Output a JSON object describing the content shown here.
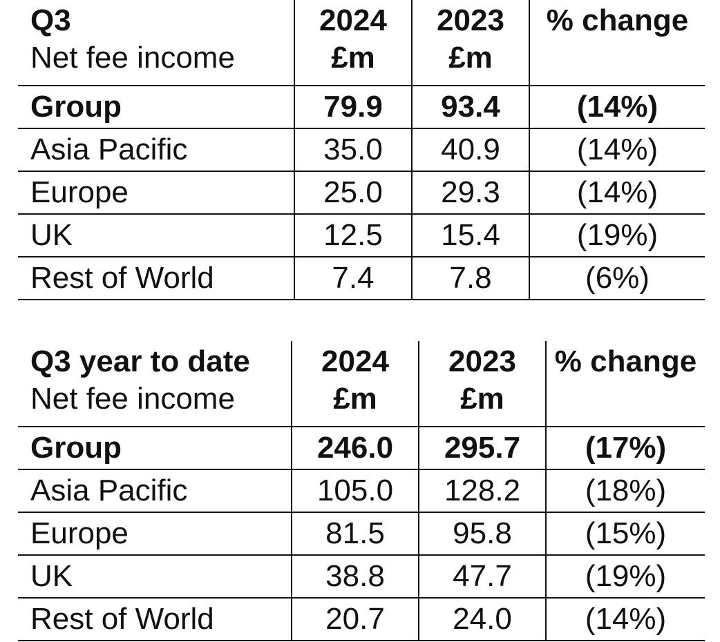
{
  "tables": [
    {
      "header": {
        "period": "Q3",
        "metric": "Net fee income",
        "col_2024": "2024",
        "col_2023": "2023",
        "unit": "£m",
        "change": "% change"
      },
      "rows": [
        {
          "label": "Group",
          "v2024": "79.9",
          "v2023": "93.4",
          "change": "(14%)"
        },
        {
          "label": "Asia Pacific",
          "v2024": "35.0",
          "v2023": "40.9",
          "change": "(14%)"
        },
        {
          "label": "Europe",
          "v2024": "25.0",
          "v2023": "29.3",
          "change": "(14%)"
        },
        {
          "label": "UK",
          "v2024": "12.5",
          "v2023": "15.4",
          "change": "(19%)"
        },
        {
          "label": "Rest of World",
          "v2024": "7.4",
          "v2023": "7.8",
          "change": "(6%)"
        }
      ]
    },
    {
      "header": {
        "period": "Q3 year to date",
        "metric": "Net fee income",
        "col_2024": "2024",
        "col_2023": "2023",
        "unit": "£m",
        "change": "% change"
      },
      "rows": [
        {
          "label": "Group",
          "v2024": "246.0",
          "v2023": "295.7",
          "change": "(17%)"
        },
        {
          "label": "Asia Pacific",
          "v2024": "105.0",
          "v2023": "128.2",
          "change": "(18%)"
        },
        {
          "label": "Europe",
          "v2024": "81.5",
          "v2023": "95.8",
          "change": "(15%)"
        },
        {
          "label": "UK",
          "v2024": "38.8",
          "v2023": "47.7",
          "change": "(19%)"
        },
        {
          "label": "Rest of World",
          "v2024": "20.7",
          "v2023": "24.0",
          "change": "(14%)"
        }
      ]
    }
  ]
}
